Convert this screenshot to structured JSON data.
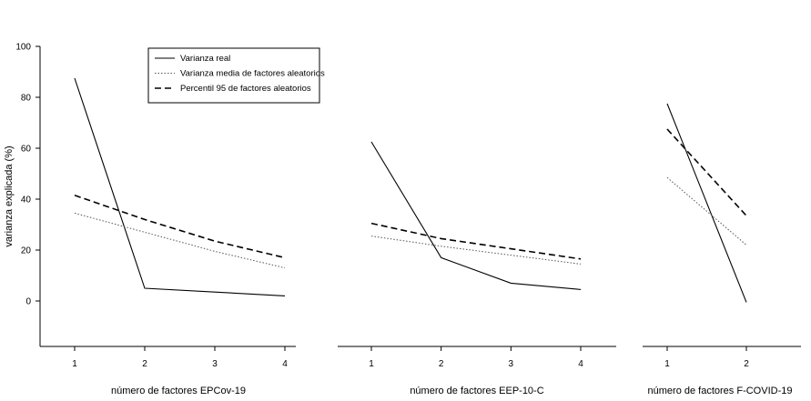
{
  "chart_data": {
    "type": "line",
    "ylabel": "varianza explicada (%)",
    "ylim": [
      -15,
      100
    ],
    "yticks": [
      0,
      20,
      40,
      60,
      80,
      100
    ],
    "grid": false,
    "legend": {
      "placement": "top-left",
      "entries": [
        {
          "key": "real",
          "label": "Varianza real",
          "style": "solid"
        },
        {
          "key": "media",
          "label": "Varianza media de factores aleatorios",
          "style": "dotted"
        },
        {
          "key": "p95",
          "label": "Percentil 95 de factores aleatorios",
          "style": "dashed"
        }
      ]
    },
    "panels": [
      {
        "xlabel": "número de factores EPCov-19",
        "x": [
          1,
          2,
          3,
          4
        ],
        "xticks": [
          "1",
          "2",
          "3",
          "4"
        ],
        "series": [
          {
            "key": "real",
            "values": [
              87.5,
              5,
              3.5,
              2
            ]
          },
          {
            "key": "media",
            "values": [
              34.5,
              27,
              19.5,
              13
            ]
          },
          {
            "key": "p95",
            "values": [
              41.5,
              32,
              23.5,
              17
            ]
          }
        ]
      },
      {
        "xlabel": "número de factores EEP-10-C",
        "x": [
          1,
          2,
          3,
          4
        ],
        "xticks": [
          "1",
          "2",
          "3",
          "4"
        ],
        "series": [
          {
            "key": "real",
            "values": [
              62.5,
              17,
              7,
              4.5
            ]
          },
          {
            "key": "media",
            "values": [
              25.5,
              21.5,
              18,
              14.5
            ]
          },
          {
            "key": "p95",
            "values": [
              30.5,
              24.5,
              20.5,
              16.5
            ]
          }
        ]
      },
      {
        "xlabel": "número de factores F-COVID-19",
        "x": [
          1,
          2
        ],
        "xticks": [
          "1",
          "2"
        ],
        "series": [
          {
            "key": "real",
            "values": [
              77.5,
              -0.5
            ]
          },
          {
            "key": "media",
            "values": [
              48.5,
              22
            ]
          },
          {
            "key": "p95",
            "values": [
              67.5,
              33.5
            ]
          }
        ]
      }
    ]
  }
}
